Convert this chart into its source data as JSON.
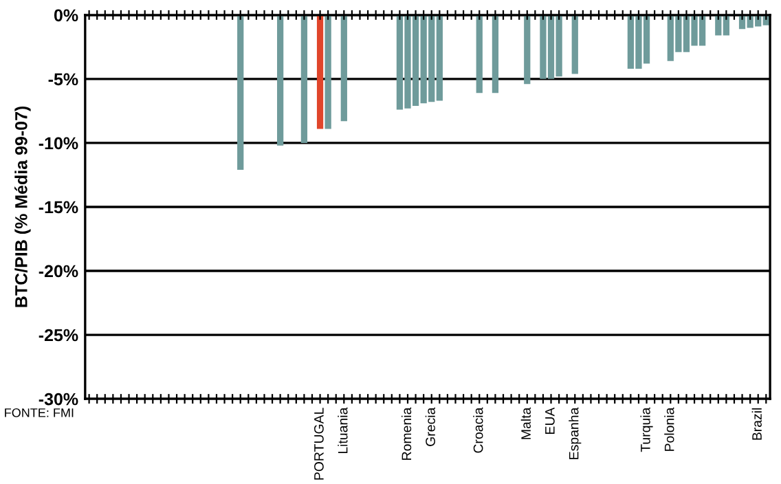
{
  "chart_data": {
    "type": "bar",
    "ylabel": "BTC/PIB (% Média 99-07)",
    "annotations": [
      "FONTE: FMI"
    ],
    "categories": [
      null,
      null,
      null,
      null,
      null,
      null,
      null,
      null,
      null,
      null,
      null,
      null,
      null,
      null,
      null,
      null,
      null,
      null,
      null,
      null,
      null,
      null,
      null,
      null,
      null,
      null,
      null,
      null,
      null,
      "PORTUGAL",
      null,
      null,
      "Lituania",
      null,
      null,
      null,
      null,
      null,
      null,
      null,
      "Romenia",
      null,
      null,
      "Grecia",
      null,
      null,
      null,
      null,
      null,
      "Croacia",
      null,
      null,
      null,
      null,
      null,
      "Malta",
      null,
      null,
      "EUA",
      null,
      null,
      "Espanha",
      null,
      null,
      null,
      null,
      null,
      null,
      null,
      null,
      "Turquia",
      null,
      null,
      "Polonia",
      null,
      null,
      null,
      null,
      null,
      null,
      null,
      null,
      null,
      null,
      "Brazil",
      null
    ],
    "values": [
      null,
      null,
      null,
      null,
      null,
      null,
      null,
      null,
      null,
      null,
      null,
      null,
      null,
      null,
      null,
      null,
      null,
      null,
      null,
      -12.1,
      null,
      null,
      null,
      null,
      -10.2,
      null,
      null,
      -10.0,
      null,
      -8.9,
      -8.9,
      null,
      -8.3,
      null,
      null,
      null,
      null,
      null,
      null,
      -7.4,
      -7.3,
      -7.1,
      -6.9,
      -6.8,
      -6.7,
      null,
      null,
      null,
      null,
      -6.1,
      null,
      -6.1,
      null,
      null,
      null,
      -5.4,
      null,
      -5.0,
      -5.0,
      -4.8,
      null,
      -4.6,
      null,
      null,
      null,
      null,
      null,
      null,
      -4.2,
      -4.2,
      -3.8,
      null,
      null,
      -3.6,
      -2.9,
      -2.9,
      -2.4,
      -2.4,
      null,
      -1.6,
      -1.6,
      null,
      -1.1,
      -1.0,
      -0.9,
      -0.8
    ],
    "colors": [
      "#6f9b9b",
      "#6f9b9b",
      "#6f9b9b",
      "#6f9b9b",
      "#6f9b9b",
      "#6f9b9b",
      "#6f9b9b",
      "#6f9b9b",
      "#6f9b9b",
      "#6f9b9b",
      "#6f9b9b",
      "#6f9b9b",
      "#6f9b9b",
      "#6f9b9b",
      "#6f9b9b",
      "#6f9b9b",
      "#6f9b9b",
      "#6f9b9b",
      "#6f9b9b",
      "#6f9b9b",
      "#6f9b9b",
      "#6f9b9b",
      "#6f9b9b",
      "#6f9b9b",
      "#6f9b9b",
      "#6f9b9b",
      "#6f9b9b",
      "#6f9b9b",
      "#6f9b9b",
      "#e0452b",
      "#6f9b9b",
      "#6f9b9b",
      "#6f9b9b",
      "#6f9b9b",
      "#6f9b9b",
      "#6f9b9b",
      "#6f9b9b",
      "#6f9b9b",
      "#6f9b9b",
      "#6f9b9b",
      "#6f9b9b",
      "#6f9b9b",
      "#6f9b9b",
      "#6f9b9b",
      "#6f9b9b",
      "#6f9b9b",
      "#6f9b9b",
      "#6f9b9b",
      "#6f9b9b",
      "#6f9b9b",
      "#6f9b9b",
      "#6f9b9b",
      "#6f9b9b",
      "#6f9b9b",
      "#6f9b9b",
      "#6f9b9b",
      "#6f9b9b",
      "#6f9b9b",
      "#6f9b9b",
      "#6f9b9b",
      "#6f9b9b",
      "#6f9b9b",
      "#6f9b9b",
      "#6f9b9b",
      "#6f9b9b",
      "#6f9b9b",
      "#6f9b9b",
      "#6f9b9b",
      "#6f9b9b",
      "#6f9b9b",
      "#6f9b9b",
      "#6f9b9b",
      "#6f9b9b",
      "#6f9b9b",
      "#6f9b9b",
      "#6f9b9b",
      "#6f9b9b",
      "#6f9b9b",
      "#6f9b9b",
      "#6f9b9b",
      "#6f9b9b",
      "#6f9b9b",
      "#6f9b9b",
      "#6f9b9b",
      "#6f9b9b",
      "#6f9b9b"
    ],
    "ylim": [
      -30,
      0
    ],
    "yticks": [
      {
        "value": 0,
        "label": "0%"
      },
      {
        "value": -5,
        "label": "-5%"
      },
      {
        "value": -10,
        "label": "-10%"
      },
      {
        "value": -15,
        "label": "-15%"
      },
      {
        "value": -20,
        "label": "-20%"
      },
      {
        "value": -25,
        "label": "-25%"
      },
      {
        "value": -30,
        "label": "-30%"
      }
    ],
    "grid": "y"
  }
}
